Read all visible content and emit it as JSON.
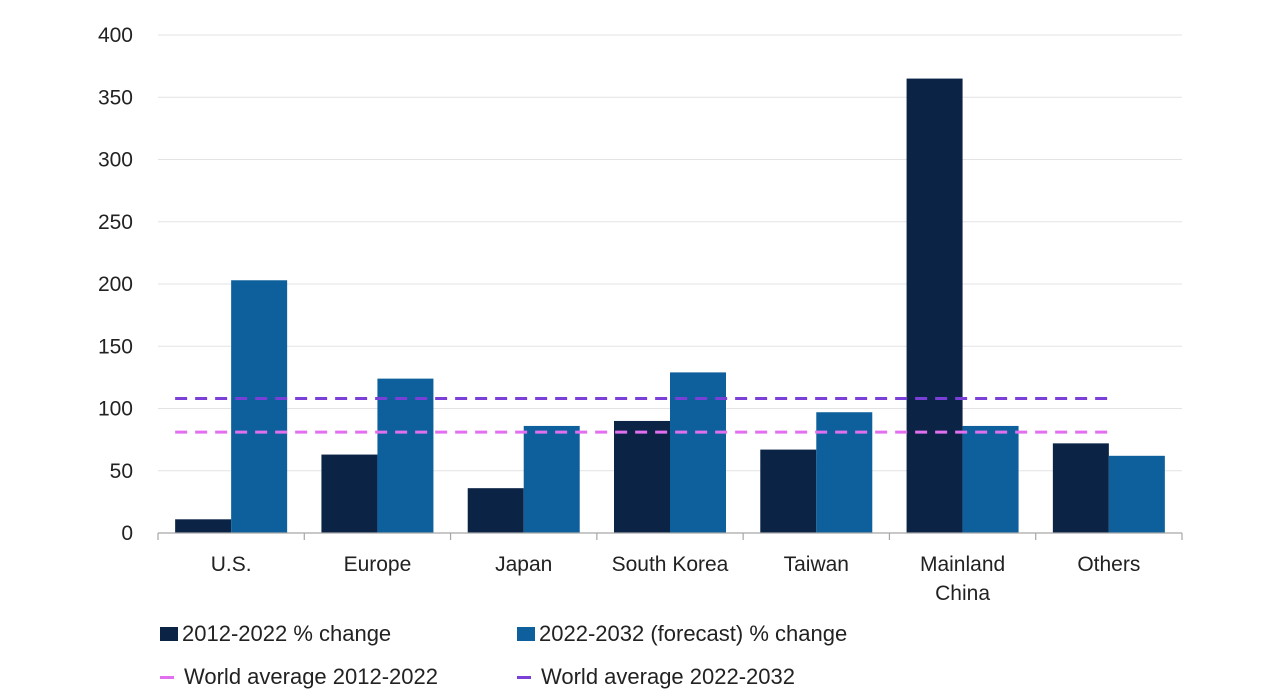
{
  "chart_data": {
    "type": "bar",
    "title": "",
    "xlabel": "",
    "ylabel": "",
    "ylim": [
      0,
      400
    ],
    "yticks": [
      0,
      50,
      100,
      150,
      200,
      250,
      300,
      350,
      400
    ],
    "grid": true,
    "categories": [
      "U.S.",
      "Europe",
      "Japan",
      "South Korea",
      "Taiwan",
      "Mainland China",
      "Others"
    ],
    "category_lines": [
      [
        "U.S."
      ],
      [
        "Europe"
      ],
      [
        "Japan"
      ],
      [
        "South Korea"
      ],
      [
        "Taiwan"
      ],
      [
        "Mainland",
        "China"
      ],
      [
        "Others"
      ]
    ],
    "series": [
      {
        "name": "2012-2022 % change",
        "color": "#0b2345",
        "values": [
          11,
          63,
          36,
          90,
          67,
          365,
          72
        ]
      },
      {
        "name": "2022-2032 (forecast) % change",
        "color": "#0d609b",
        "values": [
          203,
          124,
          86,
          129,
          97,
          86,
          62
        ]
      }
    ],
    "reference_lines": [
      {
        "name": "World average 2012-2022",
        "value": 81,
        "color": "#e26ff0"
      },
      {
        "name": "World average 2022-2032",
        "value": 108,
        "color": "#7a3fd6"
      }
    ],
    "legend_position": "bottom"
  }
}
